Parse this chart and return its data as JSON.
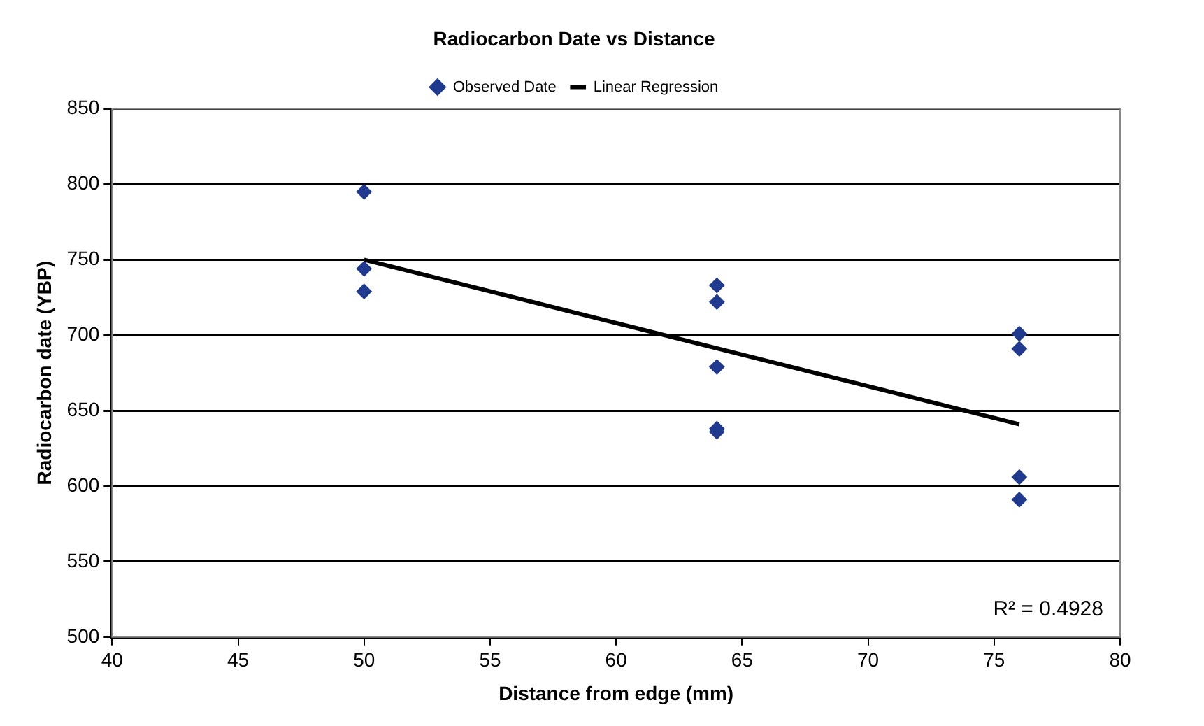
{
  "chart_data": {
    "type": "scatter",
    "title": "Radiocarbon Date vs Distance",
    "xlabel": "Distance from edge (mm)",
    "ylabel": "Radiocarbon date (YBP)",
    "series": [
      {
        "name": "Observed Date",
        "color": "#1f3a8f",
        "marker": "diamond",
        "x": [
          50,
          50,
          50,
          64,
          64,
          64,
          64,
          64,
          76,
          76,
          76,
          76
        ],
        "values": [
          795,
          744,
          729,
          733,
          722,
          679,
          638,
          636,
          701,
          691,
          606,
          591
        ]
      },
      {
        "name": "Linear Regression",
        "type": "line",
        "color": "#000000",
        "marker": "none",
        "line_style": "solid",
        "x": [
          50,
          76
        ],
        "values": [
          750,
          641
        ]
      }
    ],
    "xlim": [
      40,
      80
    ],
    "xticks": [
      40,
      45,
      50,
      55,
      60,
      65,
      70,
      75,
      80
    ],
    "ylim": [
      500,
      850
    ],
    "yticks": [
      500,
      550,
      600,
      650,
      700,
      750,
      800,
      850
    ],
    "grid": "y",
    "legend": "top",
    "annotations": [
      "R² = 0.4928"
    ]
  }
}
